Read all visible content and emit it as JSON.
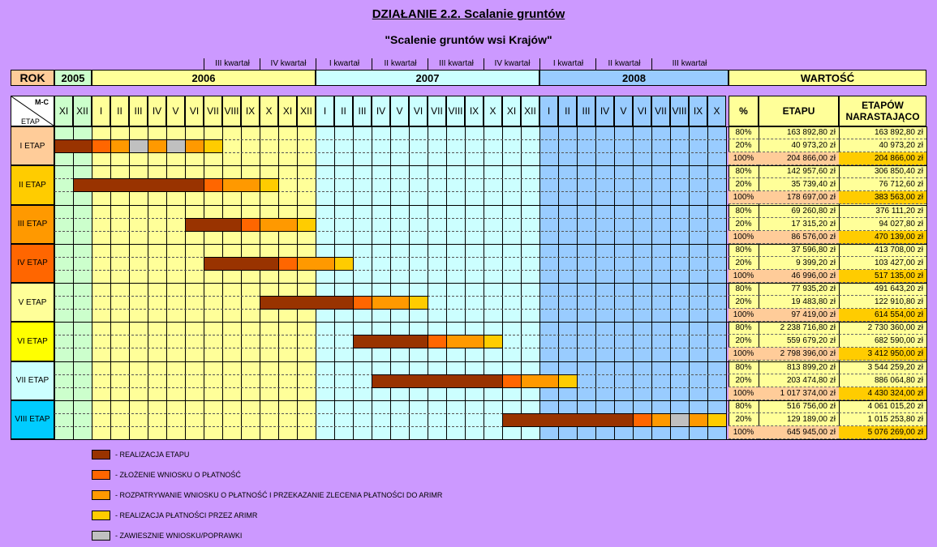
{
  "title": "DZIAŁANIE 2.2. Scalanie gruntów",
  "subtitle": "\"Scalenie gruntów wsi Krajów\"",
  "quarters": [
    "III kwartał",
    "IV kwartał",
    "I kwartał",
    "II kwartał",
    "III kwartał",
    "IV kwartał",
    "I kwartał",
    "II kwartał",
    "III kwartał"
  ],
  "header": {
    "rok": "ROK",
    "years": [
      "2005",
      "2006",
      "2007",
      "2008"
    ],
    "wartosc": "WARTOŚĆ",
    "mc": "M-C",
    "etap": "ETAP",
    "pct": "%",
    "etapu": "ETAPU",
    "etapow": "ETAPÓW NARASTAJĄCO"
  },
  "months": [
    "XI",
    "XII",
    "I",
    "II",
    "III",
    "IV",
    "V",
    "VI",
    "VII",
    "VIII",
    "IX",
    "X",
    "XI",
    "XII",
    "I",
    "II",
    "III",
    "IV",
    "V",
    "VI",
    "VII",
    "VIII",
    "IX",
    "X",
    "XI",
    "XII",
    "I",
    "II",
    "III",
    "IV",
    "V",
    "VI",
    "VII",
    "VIII",
    "IX",
    "X"
  ],
  "colors": {
    "realizacja": "#993300",
    "zlozenie": "#FF6600",
    "rozpatrywanie": "#FF9900",
    "platnosc": "#FFCC00",
    "zawieszenie": "#C0C0C0"
  },
  "stages": [
    {
      "label": "I ETAP",
      "color": "#FFCC99",
      "rows": [
        {
          "pct": "80%",
          "etapu": "163 892,80 zł",
          "narast": "163 892,80 zł"
        },
        {
          "pct": "20%",
          "etapu": "40 973,20 zł",
          "narast": "40 973,20 zł"
        },
        {
          "pct": "100%",
          "etapu": "204 866,00 zł",
          "narast": "204 866,00 zł"
        }
      ],
      "bars": [
        [
          "realizacja",
          0,
          2
        ],
        [
          "zlozenie",
          2,
          1
        ],
        [
          "rozpatrywanie",
          3,
          1
        ],
        [
          "zawieszenie",
          4,
          1
        ],
        [
          "rozpatrywanie",
          5,
          1
        ],
        [
          "zawieszenie",
          6,
          1
        ],
        [
          "rozpatrywanie",
          7,
          1
        ],
        [
          "platnosc",
          8,
          1
        ]
      ]
    },
    {
      "label": "II ETAP",
      "color": "#FFCC00",
      "rows": [
        {
          "pct": "80%",
          "etapu": "142 957,60 zł",
          "narast": "306 850,40 zł"
        },
        {
          "pct": "20%",
          "etapu": "35 739,40 zł",
          "narast": "76 712,60 zł"
        },
        {
          "pct": "100%",
          "etapu": "178 697,00 zł",
          "narast": "383 563,00 zł"
        }
      ],
      "bars": [
        [
          "realizacja",
          1,
          7
        ],
        [
          "zlozenie",
          8,
          1
        ],
        [
          "rozpatrywanie",
          9,
          2
        ],
        [
          "platnosc",
          11,
          1
        ]
      ]
    },
    {
      "label": "III ETAP",
      "color": "#FF9900",
      "rows": [
        {
          "pct": "80%",
          "etapu": "69 260,80 zł",
          "narast": "376 111,20 zł"
        },
        {
          "pct": "20%",
          "etapu": "17 315,20 zł",
          "narast": "94 027,80 zł"
        },
        {
          "pct": "100%",
          "etapu": "86 576,00 zł",
          "narast": "470 139,00 zł"
        }
      ],
      "bars": [
        [
          "realizacja",
          7,
          3
        ],
        [
          "zlozenie",
          10,
          1
        ],
        [
          "rozpatrywanie",
          11,
          2
        ],
        [
          "platnosc",
          13,
          1
        ]
      ]
    },
    {
      "label": "IV ETAP",
      "color": "#FF6600",
      "rows": [
        {
          "pct": "80%",
          "etapu": "37 596,80 zł",
          "narast": "413 708,00 zł"
        },
        {
          "pct": "20%",
          "etapu": "9 399,20 zł",
          "narast": "103 427,00 zł"
        },
        {
          "pct": "100%",
          "etapu": "46 996,00 zł",
          "narast": "517 135,00 zł"
        }
      ],
      "bars": [
        [
          "realizacja",
          8,
          4
        ],
        [
          "zlozenie",
          12,
          1
        ],
        [
          "rozpatrywanie",
          13,
          2
        ],
        [
          "platnosc",
          15,
          1
        ]
      ]
    },
    {
      "label": "V ETAP",
      "color": "#FFFF99",
      "rows": [
        {
          "pct": "80%",
          "etapu": "77 935,20 zł",
          "narast": "491 643,20 zł"
        },
        {
          "pct": "20%",
          "etapu": "19 483,80 zł",
          "narast": "122 910,80 zł"
        },
        {
          "pct": "100%",
          "etapu": "97 419,00 zł",
          "narast": "614 554,00 zł"
        }
      ],
      "bars": [
        [
          "realizacja",
          11,
          5
        ],
        [
          "zlozenie",
          16,
          1
        ],
        [
          "rozpatrywanie",
          17,
          2
        ],
        [
          "platnosc",
          19,
          1
        ]
      ]
    },
    {
      "label": "VI ETAP",
      "color": "#FFFF00",
      "rows": [
        {
          "pct": "80%",
          "etapu": "2 238 716,80 zł",
          "narast": "2 730 360,00 zł"
        },
        {
          "pct": "20%",
          "etapu": "559 679,20 zł",
          "narast": "682 590,00 zł"
        },
        {
          "pct": "100%",
          "etapu": "2 798 396,00 zł",
          "narast": "3 412 950,00 zł"
        }
      ],
      "bars": [
        [
          "realizacja",
          16,
          4
        ],
        [
          "zlozenie",
          20,
          1
        ],
        [
          "rozpatrywanie",
          21,
          2
        ],
        [
          "platnosc",
          23,
          1
        ]
      ]
    },
    {
      "label": "VII ETAP",
      "color": "#CCFFFF",
      "rows": [
        {
          "pct": "80%",
          "etapu": "813 899,20 zł",
          "narast": "3 544 259,20 zł"
        },
        {
          "pct": "20%",
          "etapu": "203 474,80 zł",
          "narast": "886 064,80 zł"
        },
        {
          "pct": "100%",
          "etapu": "1 017 374,00 zł",
          "narast": "4 430 324,00 zł"
        }
      ],
      "bars": [
        [
          "realizacja",
          17,
          7
        ],
        [
          "zlozenie",
          24,
          1
        ],
        [
          "rozpatrywanie",
          25,
          2
        ],
        [
          "platnosc",
          27,
          1
        ]
      ]
    },
    {
      "label": "VIII ETAP",
      "color": "#00CCFF",
      "rows": [
        {
          "pct": "80%",
          "etapu": "516 756,00 zł",
          "narast": "4 061 015,20 zł"
        },
        {
          "pct": "20%",
          "etapu": "129 189,00 zł",
          "narast": "1 015 253,80 zł"
        },
        {
          "pct": "100%",
          "etapu": "645 945,00 zł",
          "narast": "5 076 269,00 zł"
        }
      ],
      "bars": [
        [
          "realizacja",
          24,
          7
        ],
        [
          "zlozenie",
          31,
          1
        ],
        [
          "rozpatrywanie",
          32,
          1
        ],
        [
          "zawieszenie",
          33,
          1
        ],
        [
          "rozpatrywanie",
          34,
          1
        ],
        [
          "platnosc",
          35,
          1
        ]
      ]
    }
  ],
  "legend": [
    {
      "key": "realizacja",
      "label": "- REALIZACJA ETAPU"
    },
    {
      "key": "zlozenie",
      "label": "- ZŁOŻENIE WNIOSKU O PŁATNOŚĆ"
    },
    {
      "key": "rozpatrywanie",
      "label": "- ROZPATRYWANIE WNIOSKU O PŁATNOŚĆ I PRZEKAZANIE ZLECENIA PŁATNOŚCI DO ARIMR"
    },
    {
      "key": "platnosc",
      "label": "- REALIZACJA PŁATNOŚCI PRZEZ ARIMR"
    },
    {
      "key": "zawieszenie",
      "label": "- ZAWIESZNIE WNIOSKU/POPRAWKI"
    }
  ]
}
